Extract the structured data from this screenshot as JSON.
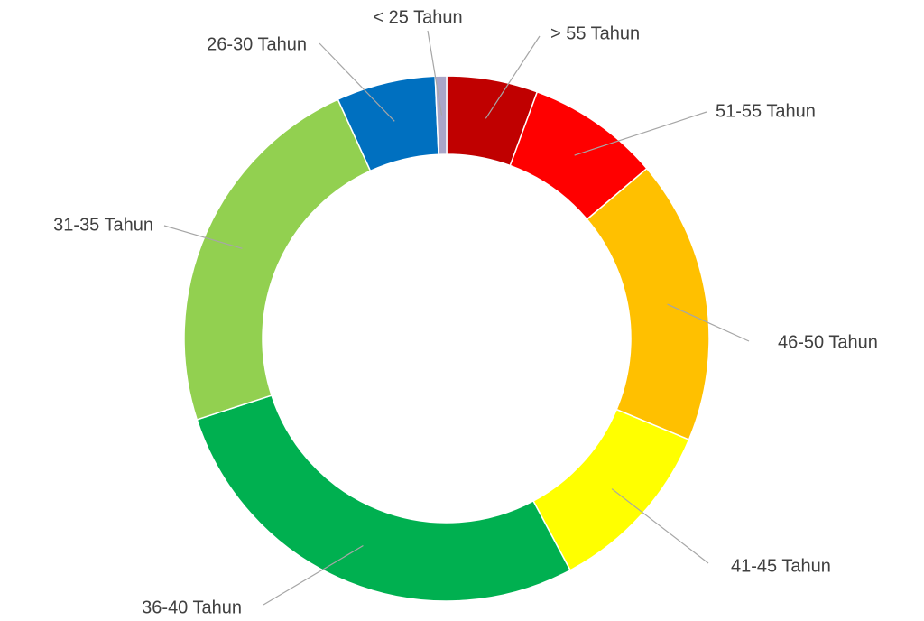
{
  "chart_data": {
    "type": "donut",
    "categories": [
      "> 55 Tahun",
      "51-55 Tahun",
      "46-50 Tahun",
      "41-45 Tahun",
      "36-40 Tahun",
      "31-35 Tahun",
      "26-30 Tahun",
      "< 25 Tahun"
    ],
    "values": [
      5.6,
      8.2,
      17.5,
      10.9,
      27.8,
      23.2,
      6.1,
      0.7
    ],
    "colors": [
      "#c00000",
      "#ff0000",
      "#ffc000",
      "#ffff00",
      "#00b050",
      "#92d050",
      "#0070c0",
      "#a9a6c8"
    ]
  }
}
